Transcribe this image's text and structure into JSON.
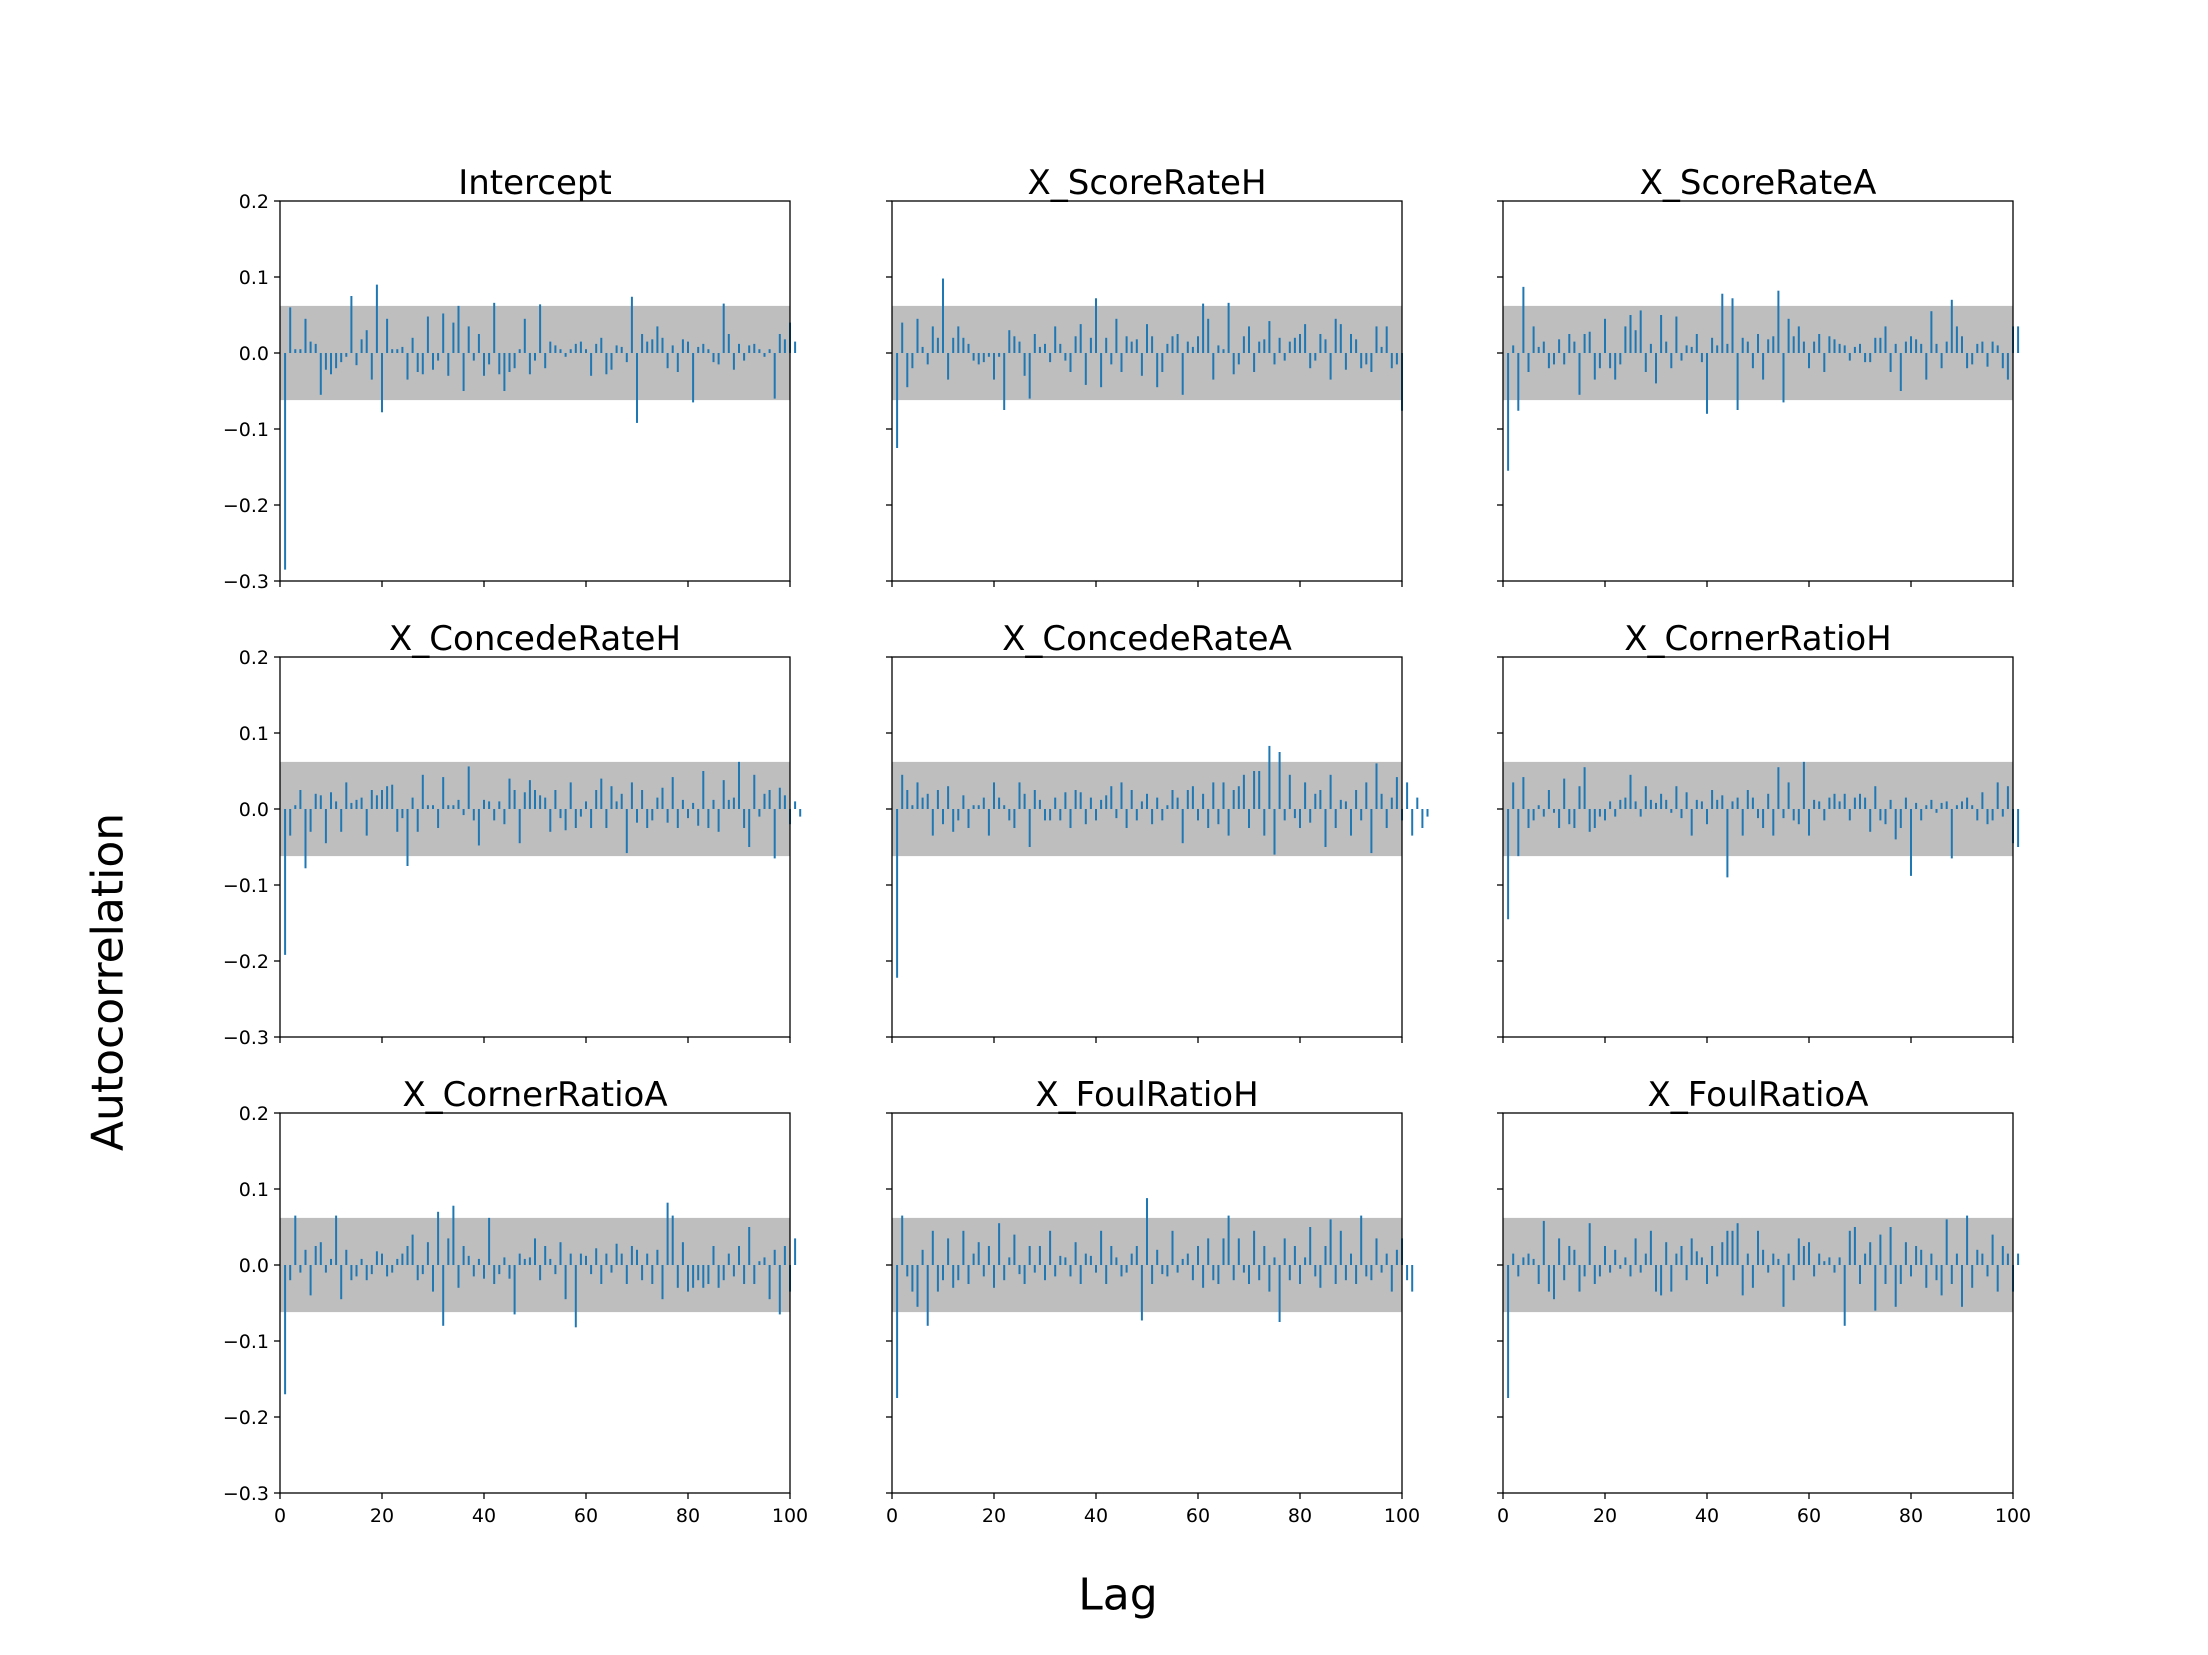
{
  "figure": {
    "ylabel": "Autocorrelation",
    "xlabel": "Lag"
  },
  "colors": {
    "bar": "#1f77b4",
    "band": "#bebebe",
    "axes": "#000000"
  },
  "chart_data": [
    {
      "type": "bar",
      "title": "Intercept",
      "x_range": [
        0,
        100
      ],
      "ylim": [
        -0.3,
        0.2
      ],
      "confidence_band": [
        -0.062,
        0.062
      ],
      "x_ticks": [
        0,
        20,
        40,
        60,
        80,
        100
      ],
      "y_ticks": [
        0.2,
        0.1,
        0.0,
        -0.1,
        -0.2,
        -0.3
      ],
      "y_tick_labels": [
        "0.2",
        "0.1",
        "0.0",
        "−0.1",
        "−0.2",
        "−0.3"
      ],
      "values": [
        -0.285,
        0.06,
        0.005,
        0.005,
        0.045,
        0.015,
        0.012,
        -0.055,
        -0.022,
        -0.028,
        -0.02,
        -0.012,
        -0.005,
        0.075,
        -0.016,
        0.018,
        0.03,
        -0.035,
        0.09,
        -0.078,
        0.045,
        0.005,
        0.005,
        0.008,
        -0.035,
        0.02,
        -0.025,
        -0.028,
        0.048,
        -0.022,
        -0.01,
        0.052,
        -0.03,
        0.04,
        0.062,
        -0.05,
        0.035,
        -0.01,
        0.025,
        -0.03,
        -0.015,
        0.066,
        -0.028,
        -0.05,
        -0.025,
        -0.02,
        0.005,
        0.045,
        -0.028,
        -0.01,
        0.064,
        -0.02,
        0.015,
        0.01,
        0.005,
        -0.005,
        0.005,
        0.012,
        0.015,
        0.005,
        -0.03,
        0.012,
        0.02,
        -0.028,
        -0.022,
        0.01,
        0.008,
        -0.012,
        0.074,
        -0.092,
        0.025,
        0.015,
        0.018,
        0.035,
        0.02,
        -0.02,
        0.01,
        -0.025,
        0.018,
        0.015,
        -0.065,
        0.008,
        0.012,
        0.005,
        -0.012,
        -0.015,
        0.065,
        0.025,
        -0.022,
        0.012,
        -0.01,
        0.01,
        0.012,
        0.005,
        -0.005,
        0.005,
        -0.06,
        0.025,
        0.018,
        0.04,
        0.015
      ]
    },
    {
      "type": "bar",
      "title": "X_ScoreRateH",
      "x_range": [
        0,
        100
      ],
      "ylim": [
        -0.3,
        0.2
      ],
      "confidence_band": [
        -0.062,
        0.062
      ],
      "x_ticks": [
        0,
        20,
        40,
        60,
        80,
        100
      ],
      "y_ticks": [
        0.2,
        0.1,
        0.0,
        -0.1,
        -0.2,
        -0.3
      ],
      "values": [
        -0.125,
        0.04,
        -0.045,
        -0.02,
        0.045,
        0.008,
        -0.015,
        0.035,
        0.02,
        0.098,
        -0.035,
        0.02,
        0.035,
        0.02,
        0.012,
        -0.01,
        -0.015,
        -0.012,
        -0.005,
        -0.035,
        -0.005,
        -0.075,
        0.03,
        0.022,
        0.015,
        -0.03,
        -0.06,
        0.025,
        0.008,
        0.012,
        -0.012,
        0.035,
        0.012,
        -0.01,
        -0.025,
        0.022,
        0.038,
        -0.042,
        0.02,
        0.072,
        -0.045,
        0.02,
        -0.015,
        0.045,
        -0.025,
        0.022,
        0.015,
        0.018,
        -0.03,
        0.038,
        0.022,
        -0.045,
        -0.025,
        0.012,
        0.022,
        0.025,
        -0.055,
        0.015,
        0.008,
        0.022,
        0.065,
        0.045,
        -0.035,
        0.01,
        0.005,
        0.066,
        -0.028,
        -0.015,
        0.022,
        0.035,
        -0.025,
        0.015,
        0.018,
        0.042,
        -0.015,
        0.02,
        -0.01,
        0.015,
        0.02,
        0.025,
        0.038,
        -0.02,
        -0.01,
        0.025,
        0.018,
        -0.035,
        0.045,
        0.038,
        -0.022,
        0.025,
        0.018,
        -0.02,
        -0.015,
        -0.025,
        0.035,
        0.008,
        0.035,
        -0.02,
        -0.015,
        -0.076
      ]
    },
    {
      "type": "bar",
      "title": "X_ScoreRateA",
      "x_range": [
        0,
        100
      ],
      "ylim": [
        -0.3,
        0.2
      ],
      "confidence_band": [
        -0.062,
        0.062
      ],
      "x_ticks": [
        0,
        20,
        40,
        60,
        80,
        100
      ],
      "y_ticks": [
        0.2,
        0.1,
        0.0,
        -0.1,
        -0.2,
        -0.3
      ],
      "values": [
        -0.155,
        0.01,
        -0.076,
        0.087,
        -0.025,
        0.035,
        0.008,
        0.015,
        -0.02,
        -0.015,
        0.018,
        -0.015,
        0.025,
        0.015,
        -0.055,
        0.025,
        0.028,
        -0.035,
        -0.02,
        0.045,
        -0.02,
        -0.035,
        -0.015,
        0.035,
        0.05,
        0.03,
        0.056,
        -0.025,
        0.012,
        -0.04,
        0.05,
        0.015,
        -0.02,
        0.048,
        -0.01,
        0.01,
        0.008,
        0.025,
        -0.012,
        -0.08,
        0.02,
        0.01,
        0.078,
        0.012,
        0.072,
        -0.075,
        0.02,
        0.015,
        -0.02,
        0.025,
        -0.035,
        0.018,
        0.022,
        0.082,
        -0.065,
        0.045,
        0.022,
        0.035,
        0.015,
        -0.02,
        0.015,
        0.025,
        -0.025,
        0.022,
        0.018,
        0.012,
        0.01,
        -0.01,
        0.008,
        0.012,
        -0.012,
        -0.012,
        0.02,
        0.02,
        0.035,
        -0.025,
        0.012,
        -0.05,
        0.015,
        0.022,
        0.018,
        0.012,
        -0.035,
        0.055,
        0.012,
        -0.02,
        0.015,
        0.07,
        0.035,
        0.022,
        -0.02,
        -0.015,
        0.012,
        0.015,
        -0.018,
        0.015,
        0.01,
        -0.02,
        -0.035,
        0.035,
        0.035
      ]
    },
    {
      "type": "bar",
      "title": "X_ConcedeRateH",
      "x_range": [
        0,
        100
      ],
      "ylim": [
        -0.3,
        0.2
      ],
      "confidence_band": [
        -0.062,
        0.062
      ],
      "x_ticks": [
        0,
        20,
        40,
        60,
        80,
        100
      ],
      "y_ticks": [
        0.2,
        0.1,
        0.0,
        -0.1,
        -0.2,
        -0.3
      ],
      "values": [
        -0.192,
        -0.035,
        0.005,
        0.025,
        -0.078,
        -0.03,
        0.02,
        0.018,
        -0.045,
        0.022,
        0.01,
        -0.03,
        0.035,
        0.008,
        0.012,
        0.015,
        -0.035,
        0.025,
        0.018,
        0.025,
        0.03,
        0.032,
        -0.03,
        -0.012,
        -0.075,
        0.015,
        -0.03,
        0.045,
        0.005,
        0.005,
        -0.025,
        0.042,
        0.005,
        0.005,
        0.012,
        -0.008,
        0.056,
        -0.015,
        -0.048,
        0.012,
        0.01,
        -0.015,
        0.01,
        -0.02,
        0.04,
        0.025,
        -0.045,
        0.022,
        0.038,
        0.025,
        0.018,
        0.015,
        -0.03,
        0.025,
        -0.012,
        -0.028,
        0.035,
        -0.025,
        -0.01,
        0.01,
        -0.025,
        0.025,
        0.04,
        -0.025,
        0.03,
        0.01,
        0.02,
        -0.058,
        0.035,
        -0.018,
        0.025,
        -0.025,
        -0.015,
        0.015,
        0.028,
        -0.018,
        0.042,
        -0.025,
        0.012,
        -0.012,
        0.008,
        -0.022,
        0.05,
        -0.025,
        0.012,
        -0.03,
        0.038,
        0.012,
        0.015,
        0.062,
        -0.025,
        -0.05,
        0.045,
        -0.01,
        0.02,
        0.025,
        -0.065,
        0.028,
        0.018,
        -0.02,
        0.01,
        -0.01
      ]
    },
    {
      "type": "bar",
      "title": "X_ConcedeRateA",
      "x_range": [
        0,
        100
      ],
      "ylim": [
        -0.3,
        0.2
      ],
      "confidence_band": [
        -0.062,
        0.062
      ],
      "x_ticks": [
        0,
        20,
        40,
        60,
        80,
        100
      ],
      "y_ticks": [
        0.2,
        0.1,
        0.0,
        -0.1,
        -0.2,
        -0.3
      ],
      "values": [
        -0.222,
        0.045,
        0.025,
        0.005,
        0.035,
        0.015,
        0.02,
        -0.035,
        0.025,
        -0.02,
        0.03,
        -0.03,
        -0.015,
        0.018,
        -0.025,
        0.005,
        0.005,
        0.015,
        -0.035,
        0.035,
        0.015,
        0.005,
        -0.015,
        -0.025,
        0.035,
        0.02,
        -0.05,
        0.025,
        0.012,
        -0.015,
        -0.015,
        0.015,
        -0.015,
        0.022,
        -0.025,
        0.025,
        0.022,
        -0.02,
        0.015,
        -0.015,
        0.012,
        0.018,
        0.03,
        -0.012,
        0.035,
        -0.025,
        0.025,
        -0.015,
        0.01,
        0.02,
        -0.02,
        0.015,
        -0.015,
        0.005,
        0.025,
        0.015,
        -0.045,
        0.025,
        0.03,
        -0.015,
        0.02,
        -0.025,
        0.035,
        -0.02,
        0.035,
        -0.035,
        0.025,
        0.03,
        0.045,
        -0.025,
        0.05,
        0.05,
        -0.035,
        0.083,
        -0.06,
        0.075,
        -0.015,
        0.045,
        -0.012,
        -0.025,
        0.035,
        -0.018,
        0.02,
        0.025,
        -0.05,
        0.045,
        -0.025,
        0.012,
        0.01,
        -0.035,
        0.025,
        -0.015,
        0.035,
        -0.058,
        0.06,
        0.02,
        -0.025,
        0.015,
        0.042,
        -0.015,
        0.035,
        -0.035,
        0.015,
        -0.025,
        -0.01
      ]
    },
    {
      "type": "bar",
      "title": "X_CornerRatioH",
      "x_range": [
        0,
        100
      ],
      "ylim": [
        -0.3,
        0.2
      ],
      "confidence_band": [
        -0.062,
        0.062
      ],
      "x_ticks": [
        0,
        20,
        40,
        60,
        80,
        100
      ],
      "y_ticks": [
        0.2,
        0.1,
        0.0,
        -0.1,
        -0.2,
        -0.3
      ],
      "values": [
        -0.145,
        0.035,
        -0.062,
        0.042,
        -0.025,
        -0.015,
        0.005,
        -0.01,
        0.025,
        -0.005,
        -0.025,
        0.04,
        -0.02,
        -0.025,
        0.03,
        0.055,
        -0.03,
        -0.025,
        -0.01,
        -0.015,
        0.01,
        -0.01,
        0.012,
        0.015,
        0.045,
        0.01,
        -0.01,
        0.03,
        0.012,
        0.008,
        0.02,
        0.012,
        -0.005,
        0.03,
        -0.012,
        0.022,
        -0.035,
        0.012,
        0.01,
        -0.02,
        0.025,
        0.012,
        0.018,
        -0.09,
        0.01,
        0.015,
        -0.035,
        0.025,
        0.015,
        -0.012,
        -0.025,
        0.02,
        -0.035,
        0.055,
        -0.012,
        0.035,
        -0.015,
        -0.02,
        0.062,
        -0.035,
        0.012,
        0.01,
        -0.015,
        0.015,
        0.02,
        0.01,
        0.02,
        -0.015,
        0.015,
        0.02,
        0.015,
        -0.03,
        0.03,
        -0.015,
        -0.02,
        0.012,
        -0.04,
        -0.025,
        0.015,
        -0.088,
        0.008,
        -0.015,
        0.005,
        0.012,
        -0.005,
        0.008,
        0.01,
        -0.065,
        0.005,
        0.01,
        0.015,
        0.005,
        -0.015,
        0.022,
        -0.02,
        -0.015,
        0.035,
        -0.01,
        0.03,
        -0.045,
        -0.05
      ]
    },
    {
      "type": "bar",
      "title": "X_CornerRatioA",
      "x_range": [
        0,
        100
      ],
      "ylim": [
        -0.3,
        0.2
      ],
      "confidence_band": [
        -0.062,
        0.062
      ],
      "x_ticks": [
        0,
        20,
        40,
        60,
        80,
        100
      ],
      "y_ticks": [
        0.2,
        0.1,
        0.0,
        -0.1,
        -0.2,
        -0.3
      ],
      "values": [
        -0.17,
        -0.02,
        0.065,
        -0.01,
        0.02,
        -0.04,
        0.025,
        0.03,
        -0.01,
        0.008,
        0.065,
        -0.045,
        0.02,
        -0.02,
        -0.015,
        0.008,
        -0.02,
        -0.012,
        0.018,
        0.015,
        -0.015,
        -0.01,
        0.008,
        0.015,
        0.025,
        0.04,
        -0.02,
        -0.012,
        0.03,
        -0.035,
        0.07,
        -0.08,
        0.035,
        0.078,
        -0.03,
        0.025,
        0.012,
        -0.015,
        0.008,
        -0.018,
        0.062,
        -0.025,
        -0.012,
        0.01,
        -0.018,
        -0.065,
        0.015,
        0.008,
        0.01,
        0.035,
        -0.02,
        0.025,
        0.008,
        -0.012,
        0.03,
        -0.045,
        0.015,
        -0.082,
        0.015,
        0.012,
        -0.012,
        0.022,
        -0.025,
        0.015,
        -0.01,
        0.028,
        0.015,
        -0.025,
        0.025,
        0.02,
        -0.02,
        0.015,
        -0.025,
        0.02,
        -0.045,
        0.082,
        0.065,
        -0.03,
        0.03,
        -0.035,
        -0.03,
        -0.02,
        -0.03,
        -0.025,
        0.025,
        -0.03,
        -0.02,
        0.015,
        -0.015,
        0.025,
        -0.025,
        0.05,
        -0.025,
        0.005,
        0.01,
        -0.045,
        0.02,
        -0.065,
        0.025,
        -0.035,
        0.035
      ]
    },
    {
      "type": "bar",
      "title": "X_FoulRatioH",
      "x_range": [
        0,
        100
      ],
      "ylim": [
        -0.3,
        0.2
      ],
      "confidence_band": [
        -0.062,
        0.062
      ],
      "x_ticks": [
        0,
        20,
        40,
        60,
        80,
        100
      ],
      "y_ticks": [
        0.2,
        0.1,
        0.0,
        -0.1,
        -0.2,
        -0.3
      ],
      "values": [
        -0.175,
        0.065,
        -0.015,
        -0.035,
        -0.055,
        0.02,
        -0.08,
        0.045,
        -0.035,
        -0.02,
        0.035,
        -0.03,
        -0.02,
        0.045,
        -0.025,
        0.015,
        0.03,
        -0.015,
        0.025,
        -0.03,
        0.055,
        -0.02,
        0.01,
        0.04,
        -0.012,
        -0.025,
        0.025,
        -0.01,
        0.025,
        -0.02,
        0.045,
        -0.015,
        0.012,
        0.01,
        -0.015,
        0.03,
        -0.025,
        0.015,
        0.012,
        -0.01,
        0.045,
        -0.025,
        0.025,
        0.01,
        -0.015,
        -0.01,
        0.015,
        0.025,
        -0.073,
        0.088,
        -0.025,
        0.02,
        -0.012,
        -0.015,
        0.045,
        -0.01,
        0.008,
        0.015,
        -0.02,
        0.025,
        -0.03,
        0.035,
        -0.02,
        -0.025,
        0.035,
        0.065,
        -0.02,
        0.035,
        -0.01,
        -0.025,
        0.045,
        -0.02,
        0.025,
        -0.035,
        0.01,
        -0.075,
        0.035,
        -0.02,
        0.025,
        -0.025,
        0.01,
        0.05,
        -0.015,
        -0.03,
        0.025,
        0.06,
        -0.025,
        0.045,
        -0.02,
        0.015,
        -0.025,
        0.065,
        -0.015,
        -0.02,
        0.035,
        -0.01,
        0.015,
        -0.035,
        0.02,
        0.035,
        -0.02,
        -0.035
      ]
    },
    {
      "type": "bar",
      "title": "X_FoulRatioA",
      "x_range": [
        0,
        100
      ],
      "ylim": [
        -0.3,
        0.2
      ],
      "confidence_band": [
        -0.062,
        0.062
      ],
      "x_ticks": [
        0,
        20,
        40,
        60,
        80,
        100
      ],
      "y_ticks": [
        0.2,
        0.1,
        0.0,
        -0.1,
        -0.2,
        -0.3
      ],
      "values": [
        -0.175,
        0.015,
        -0.015,
        0.01,
        0.015,
        0.008,
        -0.025,
        0.058,
        -0.035,
        -0.045,
        0.035,
        -0.02,
        0.025,
        0.02,
        -0.035,
        -0.015,
        0.055,
        -0.025,
        -0.015,
        0.025,
        -0.01,
        0.02,
        -0.005,
        0.01,
        -0.015,
        0.035,
        -0.01,
        0.015,
        0.045,
        -0.035,
        -0.04,
        0.03,
        -0.035,
        0.015,
        0.025,
        -0.02,
        0.035,
        0.018,
        0.01,
        -0.025,
        0.025,
        -0.015,
        0.03,
        0.045,
        0.045,
        0.055,
        -0.04,
        0.015,
        -0.03,
        0.045,
        0.02,
        -0.01,
        0.015,
        0.008,
        -0.055,
        0.015,
        -0.02,
        0.035,
        0.025,
        0.03,
        -0.015,
        0.015,
        0.005,
        0.01,
        -0.01,
        0.01,
        -0.08,
        0.045,
        0.05,
        -0.025,
        0.015,
        0.03,
        -0.06,
        0.04,
        -0.025,
        0.05,
        -0.055,
        -0.025,
        0.03,
        -0.015,
        0.025,
        0.02,
        -0.03,
        0.015,
        -0.02,
        -0.04,
        0.06,
        -0.025,
        0.015,
        -0.055,
        0.065,
        -0.03,
        0.02,
        0.015,
        -0.015,
        0.04,
        -0.035,
        0.025,
        0.015,
        -0.035,
        0.015
      ]
    }
  ]
}
